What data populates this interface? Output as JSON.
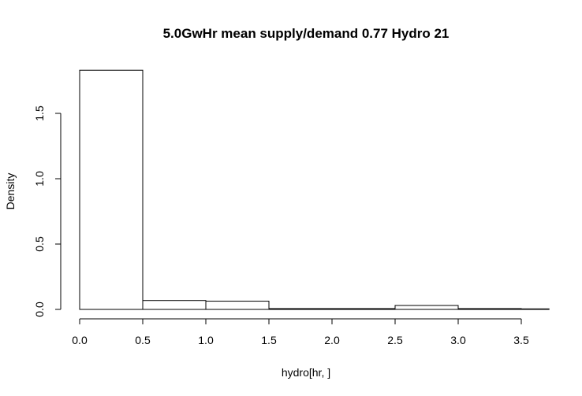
{
  "chart_data": {
    "type": "histogram",
    "title": "5.0GwHr mean supply/demand 0.77  Hydro 21",
    "xlabel": "hydro[hr, ]",
    "ylabel": "Density",
    "xlim": [
      0.0,
      3.72
    ],
    "ylim": [
      0.0,
      1.83
    ],
    "x_ticks": [
      "0.0",
      "0.5",
      "1.0",
      "1.5",
      "2.0",
      "2.5",
      "3.0",
      "3.5"
    ],
    "y_ticks": [
      "0.0",
      "0.5",
      "1.0",
      "1.5"
    ],
    "bins": [
      {
        "x0": 0.0,
        "x1": 0.5,
        "density": 1.83
      },
      {
        "x0": 0.5,
        "x1": 1.0,
        "density": 0.068
      },
      {
        "x0": 1.0,
        "x1": 1.5,
        "density": 0.063
      },
      {
        "x0": 1.5,
        "x1": 2.0,
        "density": 0.006
      },
      {
        "x0": 2.0,
        "x1": 2.5,
        "density": 0.006
      },
      {
        "x0": 2.5,
        "x1": 3.0,
        "density": 0.03
      },
      {
        "x0": 3.0,
        "x1": 3.5,
        "density": 0.006
      },
      {
        "x0": 3.5,
        "x1": 3.72,
        "density": 0.004
      }
    ],
    "grid": false,
    "legend": "none"
  }
}
